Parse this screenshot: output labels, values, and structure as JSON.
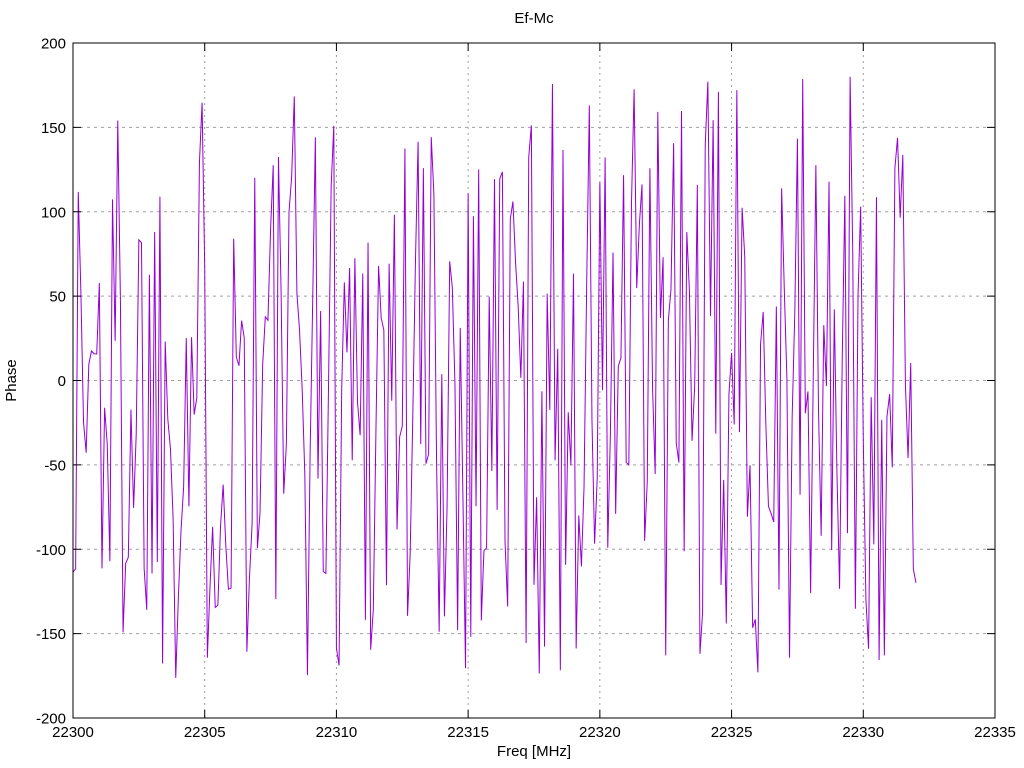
{
  "window": {
    "background": "#ffffff",
    "text_color": "#000000"
  },
  "chart_data": {
    "type": "line",
    "title": "Ef-Mc",
    "xlabel": "Freq [MHz]",
    "ylabel": "Phase",
    "xlim": [
      22300,
      22335
    ],
    "ylim": [
      -200,
      200
    ],
    "xticks": [
      22300,
      22305,
      22310,
      22315,
      22320,
      22325,
      22330,
      22335
    ],
    "yticks": [
      -200,
      -150,
      -100,
      -50,
      0,
      50,
      100,
      150,
      200
    ],
    "grid": true,
    "grid_style": "dashed",
    "grid_color": "#a0a0a0",
    "axis_color": "#000000",
    "legend": "none",
    "series": [
      {
        "name": "Ef-Mc",
        "color": "#9400d3",
        "line_width": 1,
        "x_start": 22300.0,
        "x_end": 22332.0,
        "x_step": 0.1,
        "n_points": 321,
        "y_min": -180,
        "y_max": 180,
        "distribution": "uniform-random-wrapped-phase",
        "seed": 1337
      }
    ]
  }
}
